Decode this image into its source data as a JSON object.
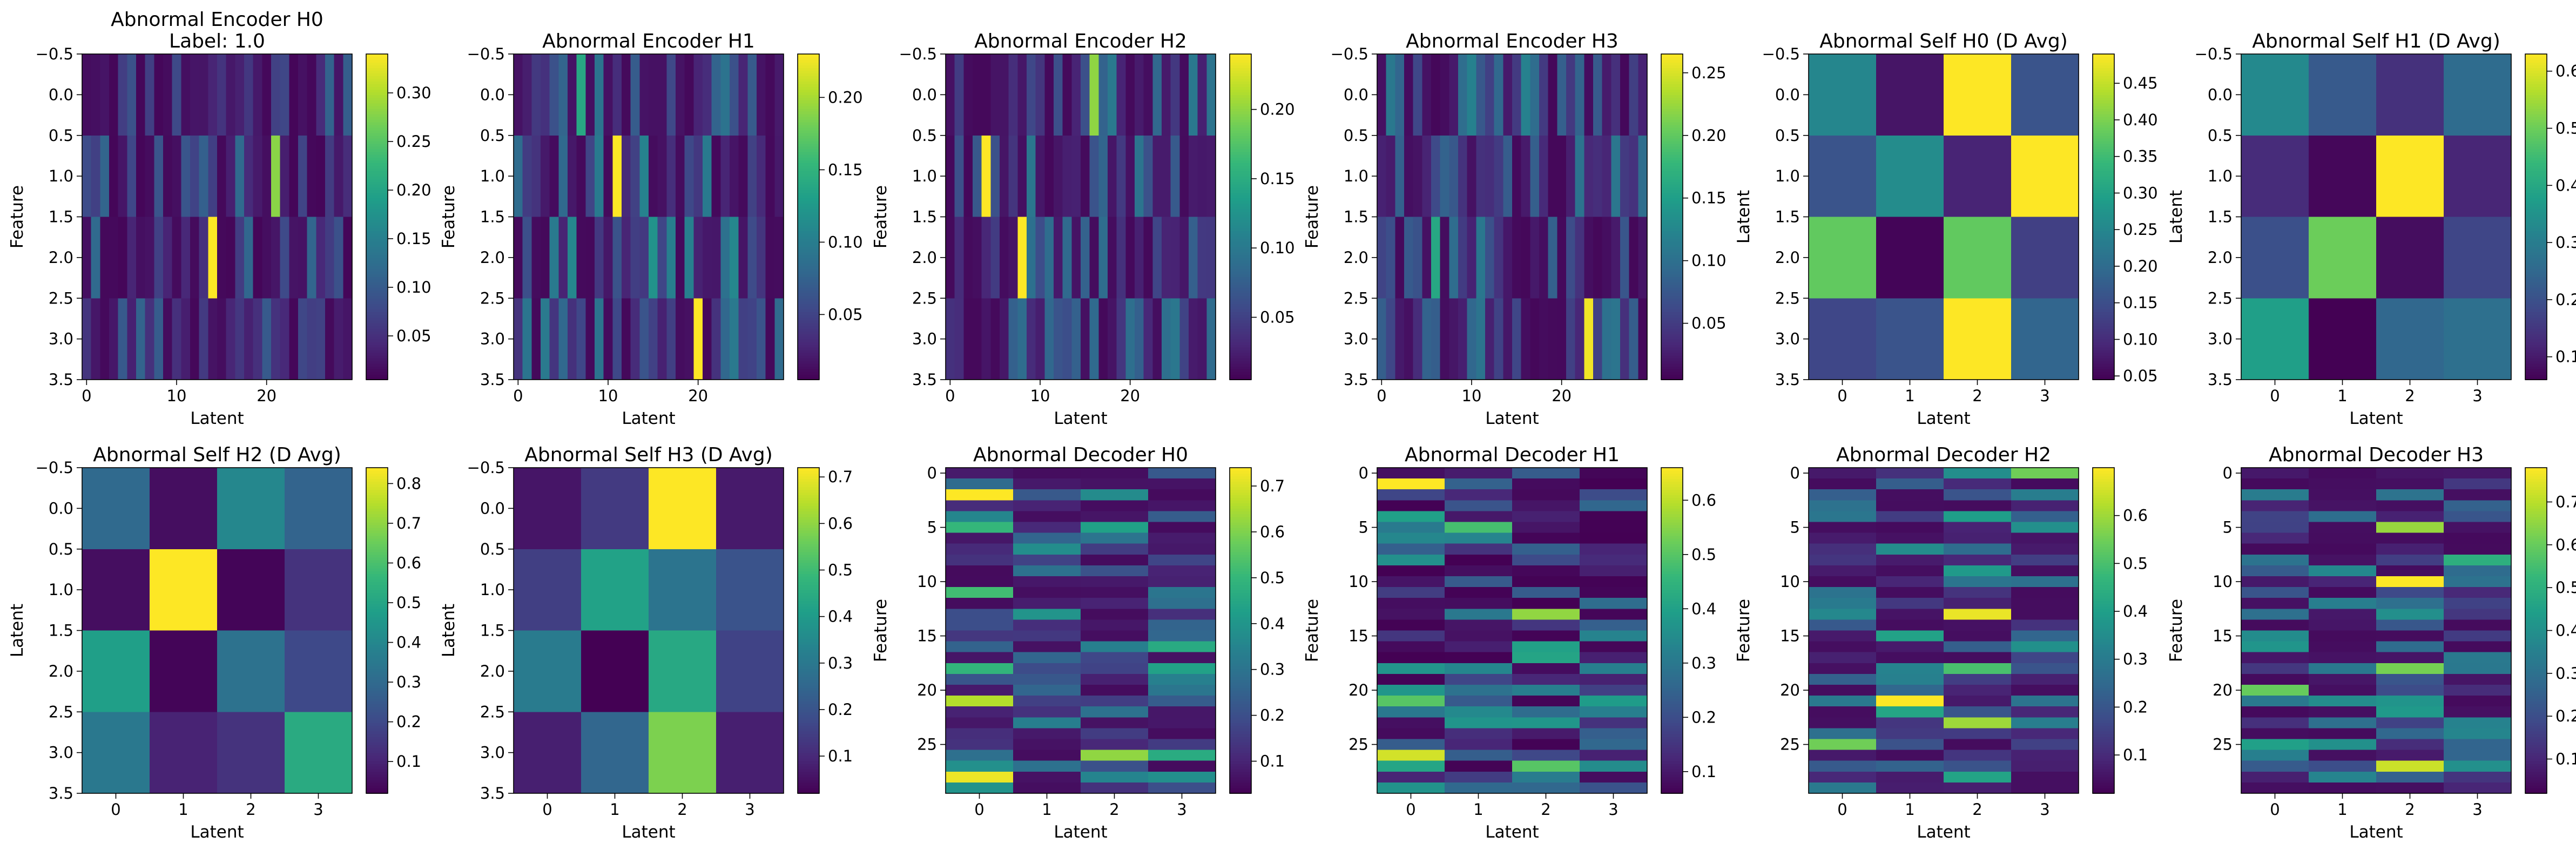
{
  "colormap": "viridis",
  "viridis_stops": [
    "#440154",
    "#482878",
    "#3e4a89",
    "#31688e",
    "#26828e",
    "#1f9e89",
    "#35b779",
    "#6ece58",
    "#b5de2b",
    "#fde725"
  ],
  "rows": [
    [
      {
        "id": "enc-h0",
        "title": [
          "Abnormal Encoder H0",
          "Label: 1.0"
        ],
        "xlabel": "Latent",
        "ylabel": "Feature",
        "xlim": [
          -0.5,
          29.5
        ],
        "ylim": [
          3.5,
          -0.5
        ],
        "xticks": [
          0,
          10,
          20
        ],
        "xtick_labels": [
          "0",
          "10",
          "20"
        ],
        "yticks": [
          -0.5,
          0,
          0.5,
          1,
          1.5,
          2,
          2.5,
          3,
          3.5
        ],
        "ytick_labels": [
          "−0.5",
          "0.0",
          "0.5",
          "1.0",
          "1.5",
          "2.0",
          "2.5",
          "3.0",
          "3.5"
        ],
        "cbar": {
          "min": 0.005,
          "max": 0.34,
          "ticks": [
            0.05,
            0.1,
            0.15,
            0.2,
            0.25,
            0.3
          ],
          "labels": [
            "0.05",
            "0.10",
            "0.15",
            "0.20",
            "0.25",
            "0.30"
          ]
        },
        "seed": 11,
        "lo": 0.01,
        "hi": 0.12,
        "peaks": [
          [
            2,
            14,
            0.34
          ],
          [
            1,
            21,
            0.28
          ],
          [
            1,
            17,
            0.12
          ],
          [
            0,
            27,
            0.11
          ]
        ]
      },
      {
        "id": "enc-h1",
        "title": [
          "Abnormal Encoder H1"
        ],
        "xlabel": "Latent",
        "ylabel": "Feature",
        "xlim": [
          -0.5,
          29.5
        ],
        "ylim": [
          3.5,
          -0.5
        ],
        "xticks": [
          0,
          10,
          20
        ],
        "xtick_labels": [
          "0",
          "10",
          "20"
        ],
        "yticks": [
          -0.5,
          0,
          0.5,
          1,
          1.5,
          2,
          2.5,
          3,
          3.5
        ],
        "ytick_labels": [
          "−0.5",
          "0.0",
          "0.5",
          "1.0",
          "1.5",
          "2.0",
          "2.5",
          "3.0",
          "3.5"
        ],
        "cbar": {
          "min": 0.005,
          "max": 0.23,
          "ticks": [
            0.05,
            0.1,
            0.15,
            0.2
          ],
          "labels": [
            "0.05",
            "0.10",
            "0.15",
            "0.20"
          ]
        },
        "seed": 23,
        "lo": 0.01,
        "hi": 0.11,
        "peaks": [
          [
            1,
            11,
            0.23
          ],
          [
            3,
            20,
            0.23
          ],
          [
            0,
            7,
            0.14
          ],
          [
            2,
            15,
            0.12
          ]
        ]
      },
      {
        "id": "enc-h2",
        "title": [
          "Abnormal Encoder H2"
        ],
        "xlabel": "Latent",
        "ylabel": "Feature",
        "xlim": [
          -0.5,
          29.5
        ],
        "ylim": [
          3.5,
          -0.5
        ],
        "xticks": [
          0,
          10,
          20
        ],
        "xtick_labels": [
          "0",
          "10",
          "20"
        ],
        "yticks": [
          -0.5,
          0,
          0.5,
          1,
          1.5,
          2,
          2.5,
          3,
          3.5
        ],
        "ytick_labels": [
          "−0.5",
          "0.0",
          "0.5",
          "1.0",
          "1.5",
          "2.0",
          "2.5",
          "3.0",
          "3.5"
        ],
        "cbar": {
          "min": 0.005,
          "max": 0.24,
          "ticks": [
            0.05,
            0.1,
            0.15,
            0.2
          ],
          "labels": [
            "0.05",
            "0.10",
            "0.15",
            "0.20"
          ]
        },
        "seed": 37,
        "lo": 0.01,
        "hi": 0.1,
        "peaks": [
          [
            1,
            4,
            0.24
          ],
          [
            2,
            8,
            0.24
          ],
          [
            0,
            16,
            0.2
          ],
          [
            0,
            18,
            0.1
          ]
        ]
      },
      {
        "id": "enc-h3",
        "title": [
          "Abnormal Encoder H3"
        ],
        "xlabel": "Latent",
        "ylabel": "Feature",
        "xlim": [
          -0.5,
          29.5
        ],
        "ylim": [
          3.5,
          -0.5
        ],
        "xticks": [
          0,
          10,
          20
        ],
        "xtick_labels": [
          "0",
          "10",
          "20"
        ],
        "yticks": [
          -0.5,
          0,
          0.5,
          1,
          1.5,
          2,
          2.5,
          3,
          3.5
        ],
        "ytick_labels": [
          "−0.5",
          "0.0",
          "0.5",
          "1.0",
          "1.5",
          "2.0",
          "2.5",
          "3.0",
          "3.5"
        ],
        "cbar": {
          "min": 0.005,
          "max": 0.265,
          "ticks": [
            0.05,
            0.1,
            0.15,
            0.2,
            0.25
          ],
          "labels": [
            "0.05",
            "0.10",
            "0.15",
            "0.20",
            "0.25"
          ]
        },
        "seed": 41,
        "lo": 0.01,
        "hi": 0.11,
        "peaks": [
          [
            3,
            23,
            0.26
          ],
          [
            2,
            6,
            0.16
          ],
          [
            0,
            10,
            0.12
          ],
          [
            0,
            16,
            0.12
          ]
        ]
      },
      {
        "id": "self-h0",
        "title": [
          "Abnormal Self H0 (D Avg)"
        ],
        "xlabel": "Latent",
        "ylabel": "Latent",
        "xlim": [
          -0.5,
          3.5
        ],
        "ylim": [
          3.5,
          -0.5
        ],
        "xticks": [
          0,
          1,
          2,
          3
        ],
        "xtick_labels": [
          "0",
          "1",
          "2",
          "3"
        ],
        "yticks": [
          -0.5,
          0,
          0.5,
          1,
          1.5,
          2,
          2.5,
          3,
          3.5
        ],
        "ytick_labels": [
          "−0.5",
          "0.0",
          "0.5",
          "1.0",
          "1.5",
          "2.0",
          "2.5",
          "3.0",
          "3.5"
        ],
        "cbar": {
          "min": 0.045,
          "max": 0.49,
          "ticks": [
            0.05,
            0.1,
            0.15,
            0.2,
            0.25,
            0.3,
            0.35,
            0.4,
            0.45
          ],
          "labels": [
            "0.05",
            "0.10",
            "0.15",
            "0.20",
            "0.25",
            "0.30",
            "0.35",
            "0.40",
            "0.45"
          ]
        },
        "matrix": [
          [
            0.25,
            0.07,
            0.49,
            0.16
          ],
          [
            0.16,
            0.26,
            0.09,
            0.49
          ],
          [
            0.38,
            0.05,
            0.38,
            0.13
          ],
          [
            0.14,
            0.16,
            0.49,
            0.19
          ]
        ]
      },
      {
        "id": "self-h1",
        "title": [
          "Abnormal Self H1 (D Avg)"
        ],
        "xlabel": "Latent",
        "ylabel": "Latent",
        "xlim": [
          -0.5,
          3.5
        ],
        "ylim": [
          3.5,
          -0.5
        ],
        "xticks": [
          0,
          1,
          2,
          3
        ],
        "xtick_labels": [
          "0",
          "1",
          "2",
          "3"
        ],
        "yticks": [
          -0.5,
          0,
          0.5,
          1,
          1.5,
          2,
          2.5,
          3,
          3.5
        ],
        "ytick_labels": [
          "−0.5",
          "0.0",
          "0.5",
          "1.0",
          "1.5",
          "2.0",
          "2.5",
          "3.0",
          "3.5"
        ],
        "cbar": {
          "min": 0.06,
          "max": 0.63,
          "ticks": [
            0.1,
            0.2,
            0.3,
            0.4,
            0.5,
            0.6
          ],
          "labels": [
            "0.1",
            "0.2",
            "0.3",
            "0.4",
            "0.5",
            "0.6"
          ]
        },
        "matrix": [
          [
            0.33,
            0.22,
            0.14,
            0.26
          ],
          [
            0.13,
            0.07,
            0.63,
            0.12
          ],
          [
            0.2,
            0.5,
            0.08,
            0.18
          ],
          [
            0.38,
            0.06,
            0.25,
            0.27
          ]
        ]
      }
    ],
    [
      {
        "id": "self-h2",
        "title": [
          "Abnormal Self H2 (D Avg)"
        ],
        "xlabel": "Latent",
        "ylabel": "Latent",
        "xlim": [
          -0.5,
          3.5
        ],
        "ylim": [
          3.5,
          -0.5
        ],
        "xticks": [
          0,
          1,
          2,
          3
        ],
        "xtick_labels": [
          "0",
          "1",
          "2",
          "3"
        ],
        "yticks": [
          -0.5,
          0,
          0.5,
          1,
          1.5,
          2,
          2.5,
          3,
          3.5
        ],
        "ytick_labels": [
          "−0.5",
          "0.0",
          "0.5",
          "1.0",
          "1.5",
          "2.0",
          "2.5",
          "3.0",
          "3.5"
        ],
        "cbar": {
          "min": 0.02,
          "max": 0.84,
          "ticks": [
            0.1,
            0.2,
            0.3,
            0.4,
            0.5,
            0.6,
            0.7,
            0.8
          ],
          "labels": [
            "0.1",
            "0.2",
            "0.3",
            "0.4",
            "0.5",
            "0.6",
            "0.7",
            "0.8"
          ]
        },
        "matrix": [
          [
            0.3,
            0.05,
            0.4,
            0.28
          ],
          [
            0.05,
            0.84,
            0.03,
            0.14
          ],
          [
            0.48,
            0.03,
            0.33,
            0.2
          ],
          [
            0.35,
            0.1,
            0.14,
            0.52
          ]
        ]
      },
      {
        "id": "self-h3",
        "title": [
          "Abnormal Self H3 (D Avg)"
        ],
        "xlabel": "Latent",
        "ylabel": "Latent",
        "xlim": [
          -0.5,
          3.5
        ],
        "ylim": [
          3.5,
          -0.5
        ],
        "xticks": [
          0,
          1,
          2,
          3
        ],
        "xtick_labels": [
          "0",
          "1",
          "2",
          "3"
        ],
        "yticks": [
          -0.5,
          0,
          0.5,
          1,
          1.5,
          2,
          2.5,
          3,
          3.5
        ],
        "ytick_labels": [
          "−0.5",
          "0.0",
          "0.5",
          "1.0",
          "1.5",
          "2.0",
          "2.5",
          "3.0",
          "3.5"
        ],
        "cbar": {
          "min": 0.02,
          "max": 0.72,
          "ticks": [
            0.1,
            0.2,
            0.3,
            0.4,
            0.5,
            0.6,
            0.7
          ],
          "labels": [
            "0.1",
            "0.2",
            "0.3",
            "0.4",
            "0.5",
            "0.6",
            "0.7"
          ]
        },
        "matrix": [
          [
            0.06,
            0.14,
            0.72,
            0.07
          ],
          [
            0.15,
            0.42,
            0.29,
            0.2
          ],
          [
            0.31,
            0.02,
            0.44,
            0.16
          ],
          [
            0.08,
            0.25,
            0.58,
            0.08
          ]
        ]
      },
      {
        "id": "dec-h0",
        "title": [
          "Abnormal Decoder H0"
        ],
        "xlabel": "Latent",
        "ylabel": "Feature",
        "xlim": [
          -0.5,
          3.5
        ],
        "ylim": [
          29.5,
          -0.5
        ],
        "xticks": [
          0,
          1,
          2,
          3
        ],
        "xtick_labels": [
          "0",
          "1",
          "2",
          "3"
        ],
        "yticks": [
          0,
          5,
          10,
          15,
          20,
          25
        ],
        "ytick_labels": [
          "0",
          "5",
          "10",
          "15",
          "20",
          "25"
        ],
        "cbar": {
          "min": 0.03,
          "max": 0.74,
          "ticks": [
            0.1,
            0.2,
            0.3,
            0.4,
            0.5,
            0.6,
            0.7
          ],
          "labels": [
            "0.1",
            "0.2",
            "0.3",
            "0.4",
            "0.5",
            "0.6",
            "0.7"
          ]
        },
        "seed": 53,
        "lo": 0.05,
        "hi": 0.5,
        "peaks": [
          [
            2,
            0,
            0.74
          ],
          [
            21,
            0,
            0.66
          ],
          [
            28,
            0,
            0.72
          ],
          [
            26,
            2,
            0.62
          ],
          [
            5,
            0,
            0.5
          ],
          [
            11,
            0,
            0.52
          ]
        ]
      },
      {
        "id": "dec-h1",
        "title": [
          "Abnormal Decoder H1"
        ],
        "xlabel": "Latent",
        "ylabel": "Feature",
        "xlim": [
          -0.5,
          3.5
        ],
        "ylim": [
          29.5,
          -0.5
        ],
        "xticks": [
          0,
          1,
          2,
          3
        ],
        "xtick_labels": [
          "0",
          "1",
          "2",
          "3"
        ],
        "yticks": [
          0,
          5,
          10,
          15,
          20,
          25
        ],
        "ytick_labels": [
          "0",
          "5",
          "10",
          "15",
          "20",
          "25"
        ],
        "cbar": {
          "min": 0.06,
          "max": 0.66,
          "ticks": [
            0.1,
            0.2,
            0.3,
            0.4,
            0.5,
            0.6
          ],
          "labels": [
            "0.1",
            "0.2",
            "0.3",
            "0.4",
            "0.5",
            "0.6"
          ]
        },
        "seed": 67,
        "lo": 0.06,
        "hi": 0.42,
        "peaks": [
          [
            1,
            0,
            0.66
          ],
          [
            26,
            0,
            0.62
          ],
          [
            13,
            2,
            0.56
          ],
          [
            21,
            0,
            0.5
          ],
          [
            5,
            1,
            0.48
          ],
          [
            27,
            2,
            0.5
          ]
        ]
      },
      {
        "id": "dec-h2",
        "title": [
          "Abnormal Decoder H2"
        ],
        "xlabel": "Latent",
        "ylabel": "Feature",
        "xlim": [
          -0.5,
          3.5
        ],
        "ylim": [
          29.5,
          -0.5
        ],
        "xticks": [
          0,
          1,
          2,
          3
        ],
        "xtick_labels": [
          "0",
          "1",
          "2",
          "3"
        ],
        "yticks": [
          0,
          5,
          10,
          15,
          20,
          25
        ],
        "ytick_labels": [
          "0",
          "5",
          "10",
          "15",
          "20",
          "25"
        ],
        "cbar": {
          "min": 0.02,
          "max": 0.7,
          "ticks": [
            0.1,
            0.2,
            0.3,
            0.4,
            0.5,
            0.6
          ],
          "labels": [
            "0.1",
            "0.2",
            "0.3",
            "0.4",
            "0.5",
            "0.6"
          ]
        },
        "seed": 79,
        "lo": 0.04,
        "hi": 0.42,
        "peaks": [
          [
            21,
            1,
            0.7
          ],
          [
            13,
            2,
            0.68
          ],
          [
            23,
            2,
            0.6
          ],
          [
            0,
            3,
            0.55
          ],
          [
            25,
            0,
            0.55
          ],
          [
            18,
            2,
            0.5
          ]
        ]
      },
      {
        "id": "dec-h3",
        "title": [
          "Abnormal Decoder H3"
        ],
        "xlabel": "Latent",
        "ylabel": "Feature",
        "xlim": [
          -0.5,
          3.5
        ],
        "ylim": [
          29.5,
          -0.5
        ],
        "xticks": [
          0,
          1,
          2,
          3
        ],
        "xtick_labels": [
          "0",
          "1",
          "2",
          "3"
        ],
        "yticks": [
          0,
          5,
          10,
          15,
          20,
          25
        ],
        "ytick_labels": [
          "0",
          "5",
          "10",
          "15",
          "20",
          "25"
        ],
        "cbar": {
          "min": 0.02,
          "max": 0.78,
          "ticks": [
            0.1,
            0.2,
            0.3,
            0.4,
            0.5,
            0.6,
            0.7
          ],
          "labels": [
            "0.1",
            "0.2",
            "0.3",
            "0.4",
            "0.5",
            "0.6",
            "0.7"
          ]
        },
        "seed": 97,
        "lo": 0.04,
        "hi": 0.45,
        "peaks": [
          [
            10,
            2,
            0.78
          ],
          [
            27,
            2,
            0.72
          ],
          [
            5,
            2,
            0.66
          ],
          [
            20,
            0,
            0.6
          ],
          [
            18,
            2,
            0.62
          ],
          [
            8,
            3,
            0.5
          ]
        ]
      }
    ]
  ]
}
